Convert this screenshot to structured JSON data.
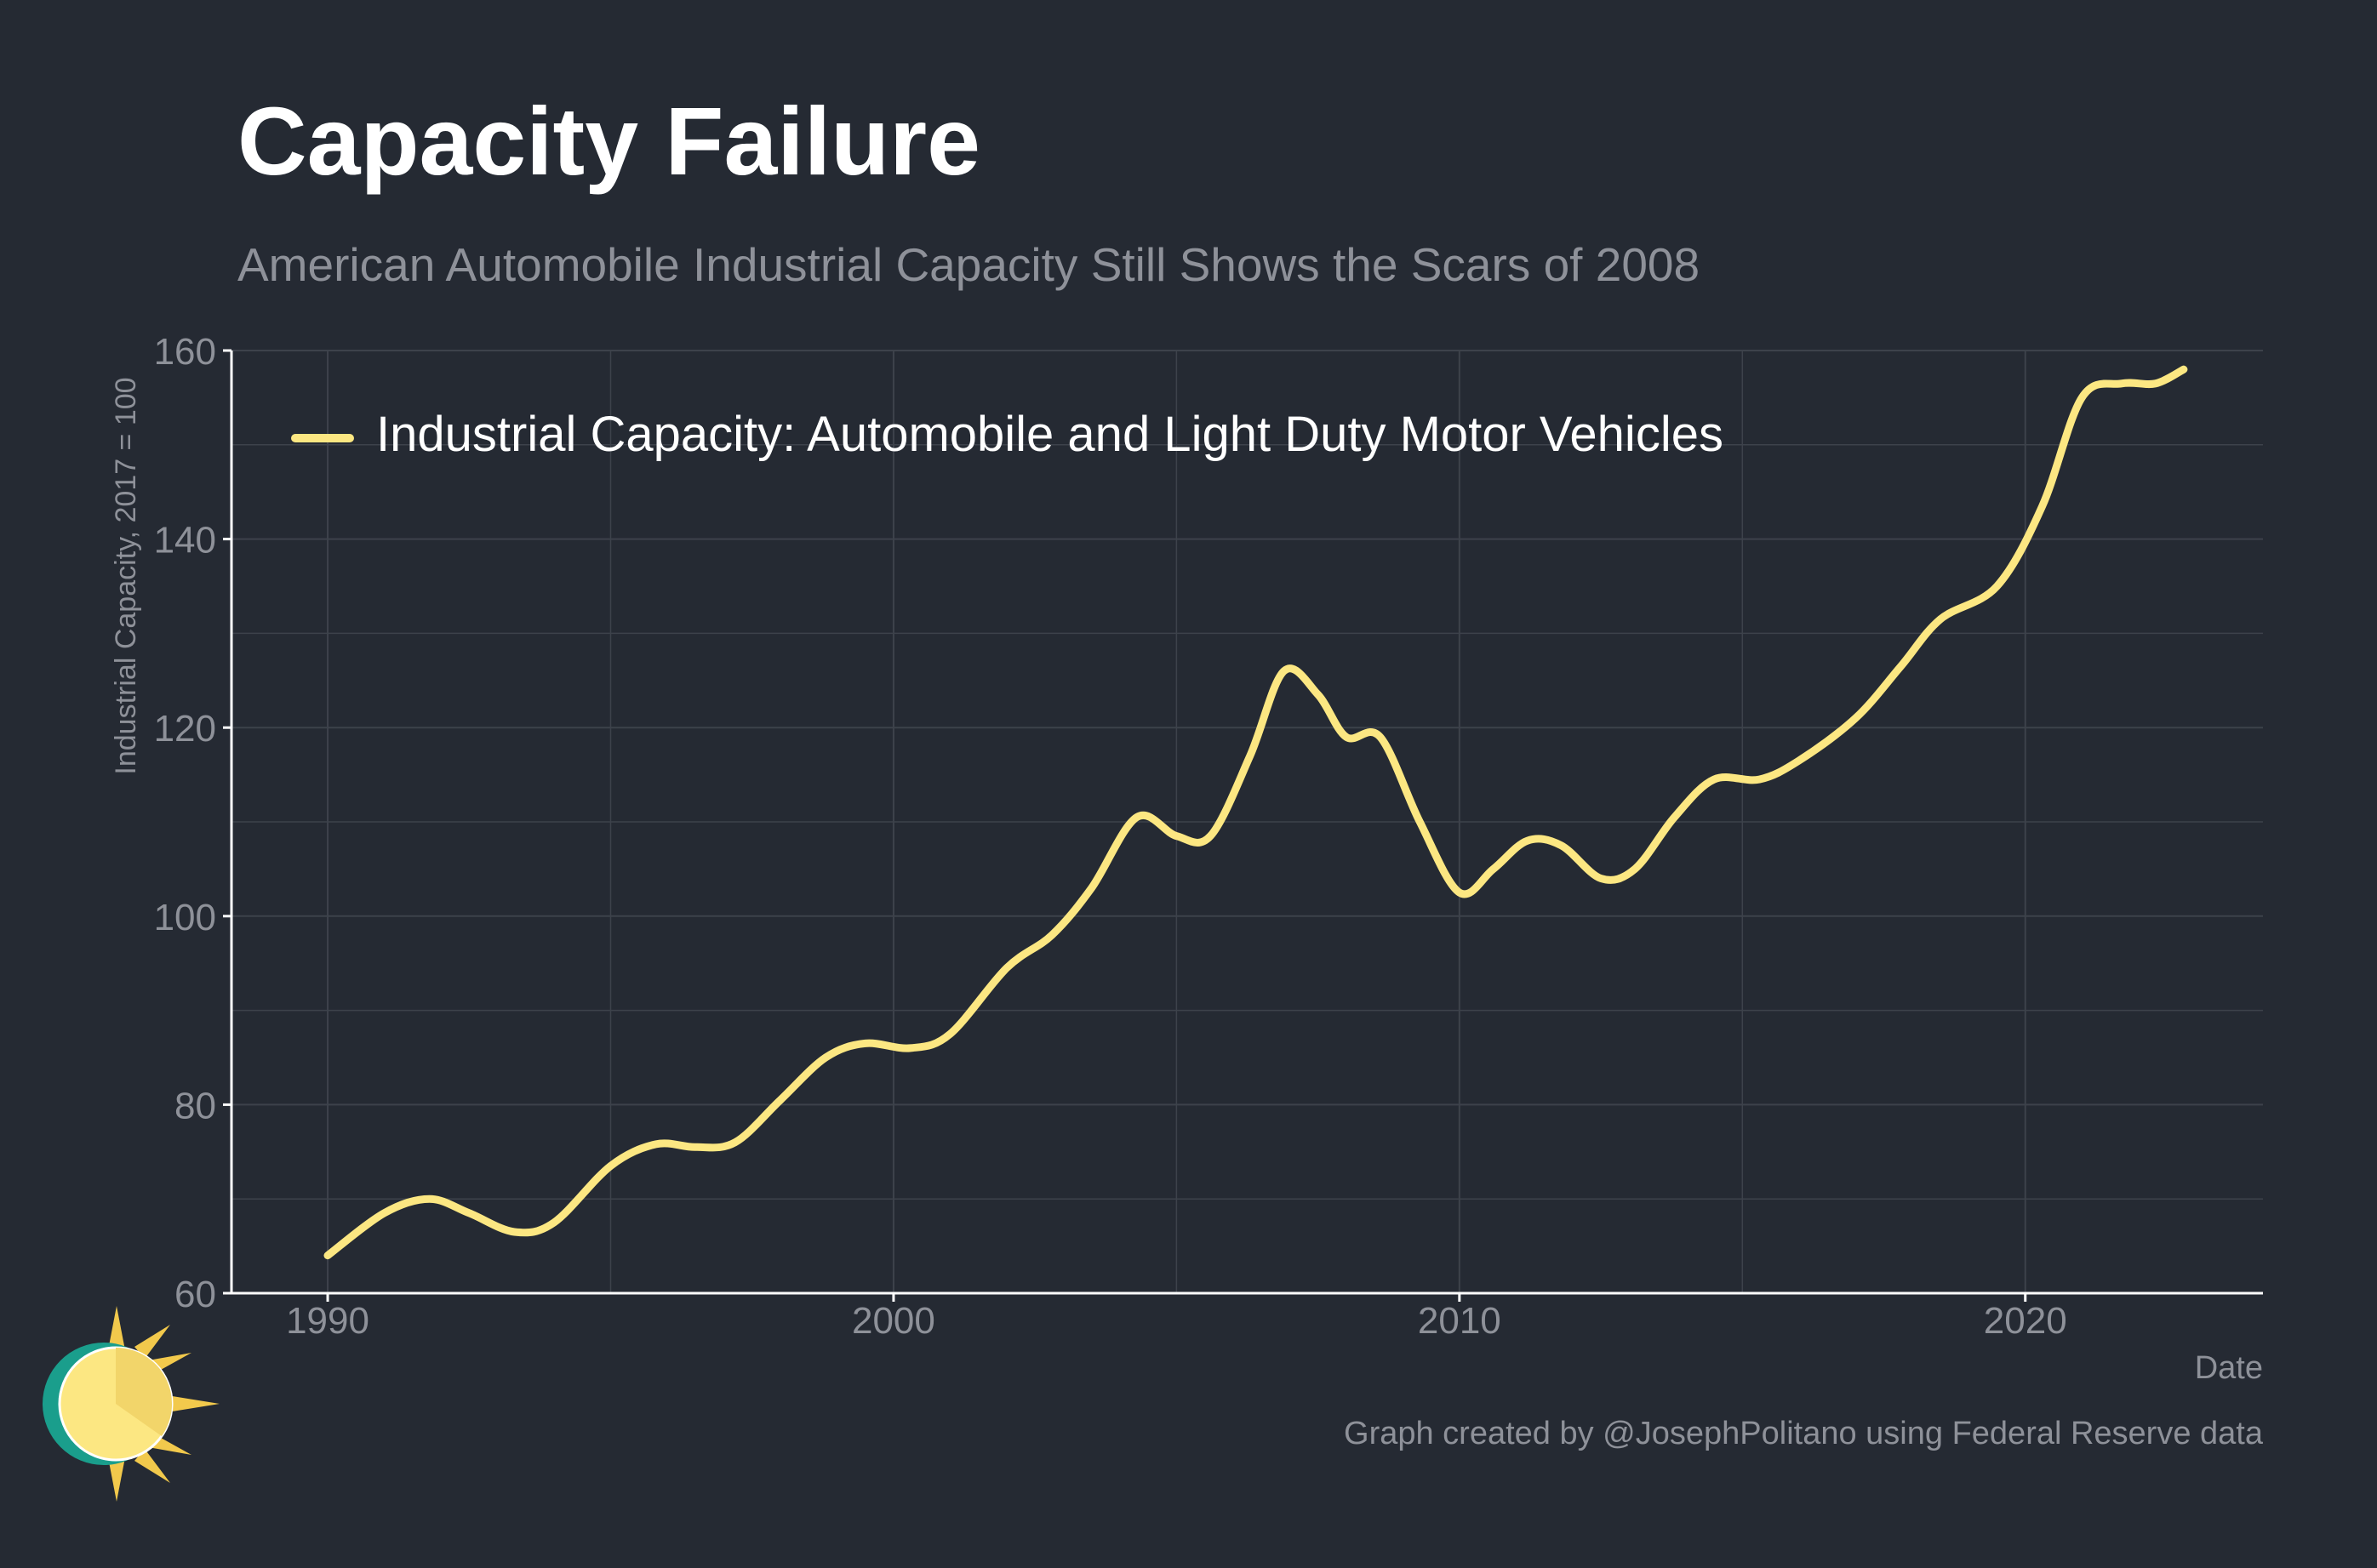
{
  "title": "Capacity Failure",
  "subtitle": "American Automobile Industrial Capacity Still Shows the Scars of 2008",
  "caption": "Graph created by @JosephPolitano using Federal Reserve data",
  "colors": {
    "background": "#252a33",
    "line": "#fce782",
    "grid": "#3d424b",
    "axis_text": "#8e9199",
    "legend_text": "#ffffff"
  },
  "chart_data": {
    "type": "line",
    "title": "Capacity Failure",
    "subtitle": "American Automobile Industrial Capacity Still Shows the Scars of 2008",
    "xlabel": "Date",
    "ylabel": "Industrial Capacity, 2017 = 100",
    "x_ticks": [
      1990,
      2000,
      2010,
      2020
    ],
    "y_ticks": [
      60,
      80,
      100,
      120,
      140,
      160
    ],
    "xlim": [
      1988.3,
      2024.2
    ],
    "ylim": [
      60,
      160
    ],
    "grid": true,
    "legend_position": "top-left",
    "series": [
      {
        "name": "Industrial Capacity: Automobile and Light Duty Motor Vehicles",
        "color": "#fce782",
        "points": [
          [
            1990.0,
            64.0
          ],
          [
            1991.0,
            68.5
          ],
          [
            1991.8,
            70.0
          ],
          [
            1992.5,
            68.5
          ],
          [
            1993.3,
            66.5
          ],
          [
            1994.0,
            67.5
          ],
          [
            1995.0,
            73.5
          ],
          [
            1995.8,
            75.8
          ],
          [
            1996.5,
            75.5
          ],
          [
            1997.2,
            76.0
          ],
          [
            1998.0,
            80.5
          ],
          [
            1998.8,
            85.0
          ],
          [
            1999.5,
            86.5
          ],
          [
            2000.3,
            86.0
          ],
          [
            2001.0,
            87.5
          ],
          [
            2002.0,
            94.5
          ],
          [
            2002.8,
            98.0
          ],
          [
            2003.5,
            103.0
          ],
          [
            2004.3,
            110.5
          ],
          [
            2005.0,
            108.5
          ],
          [
            2005.6,
            108.5
          ],
          [
            2006.3,
            117.0
          ],
          [
            2006.9,
            126.0
          ],
          [
            2007.5,
            123.5
          ],
          [
            2008.0,
            119.0
          ],
          [
            2008.6,
            119.0
          ],
          [
            2009.3,
            110.0
          ],
          [
            2010.0,
            102.5
          ],
          [
            2010.6,
            105.0
          ],
          [
            2011.2,
            108.0
          ],
          [
            2011.8,
            107.5
          ],
          [
            2012.5,
            104.0
          ],
          [
            2013.1,
            105.0
          ],
          [
            2013.8,
            110.5
          ],
          [
            2014.5,
            114.5
          ],
          [
            2015.3,
            114.5
          ],
          [
            2016.0,
            116.5
          ],
          [
            2017.0,
            121.0
          ],
          [
            2017.8,
            126.5
          ],
          [
            2018.5,
            131.5
          ],
          [
            2019.5,
            135.0
          ],
          [
            2020.3,
            143.5
          ],
          [
            2021.0,
            155.0
          ],
          [
            2021.7,
            156.5
          ],
          [
            2022.3,
            156.5
          ],
          [
            2022.8,
            158.0
          ]
        ]
      }
    ]
  }
}
